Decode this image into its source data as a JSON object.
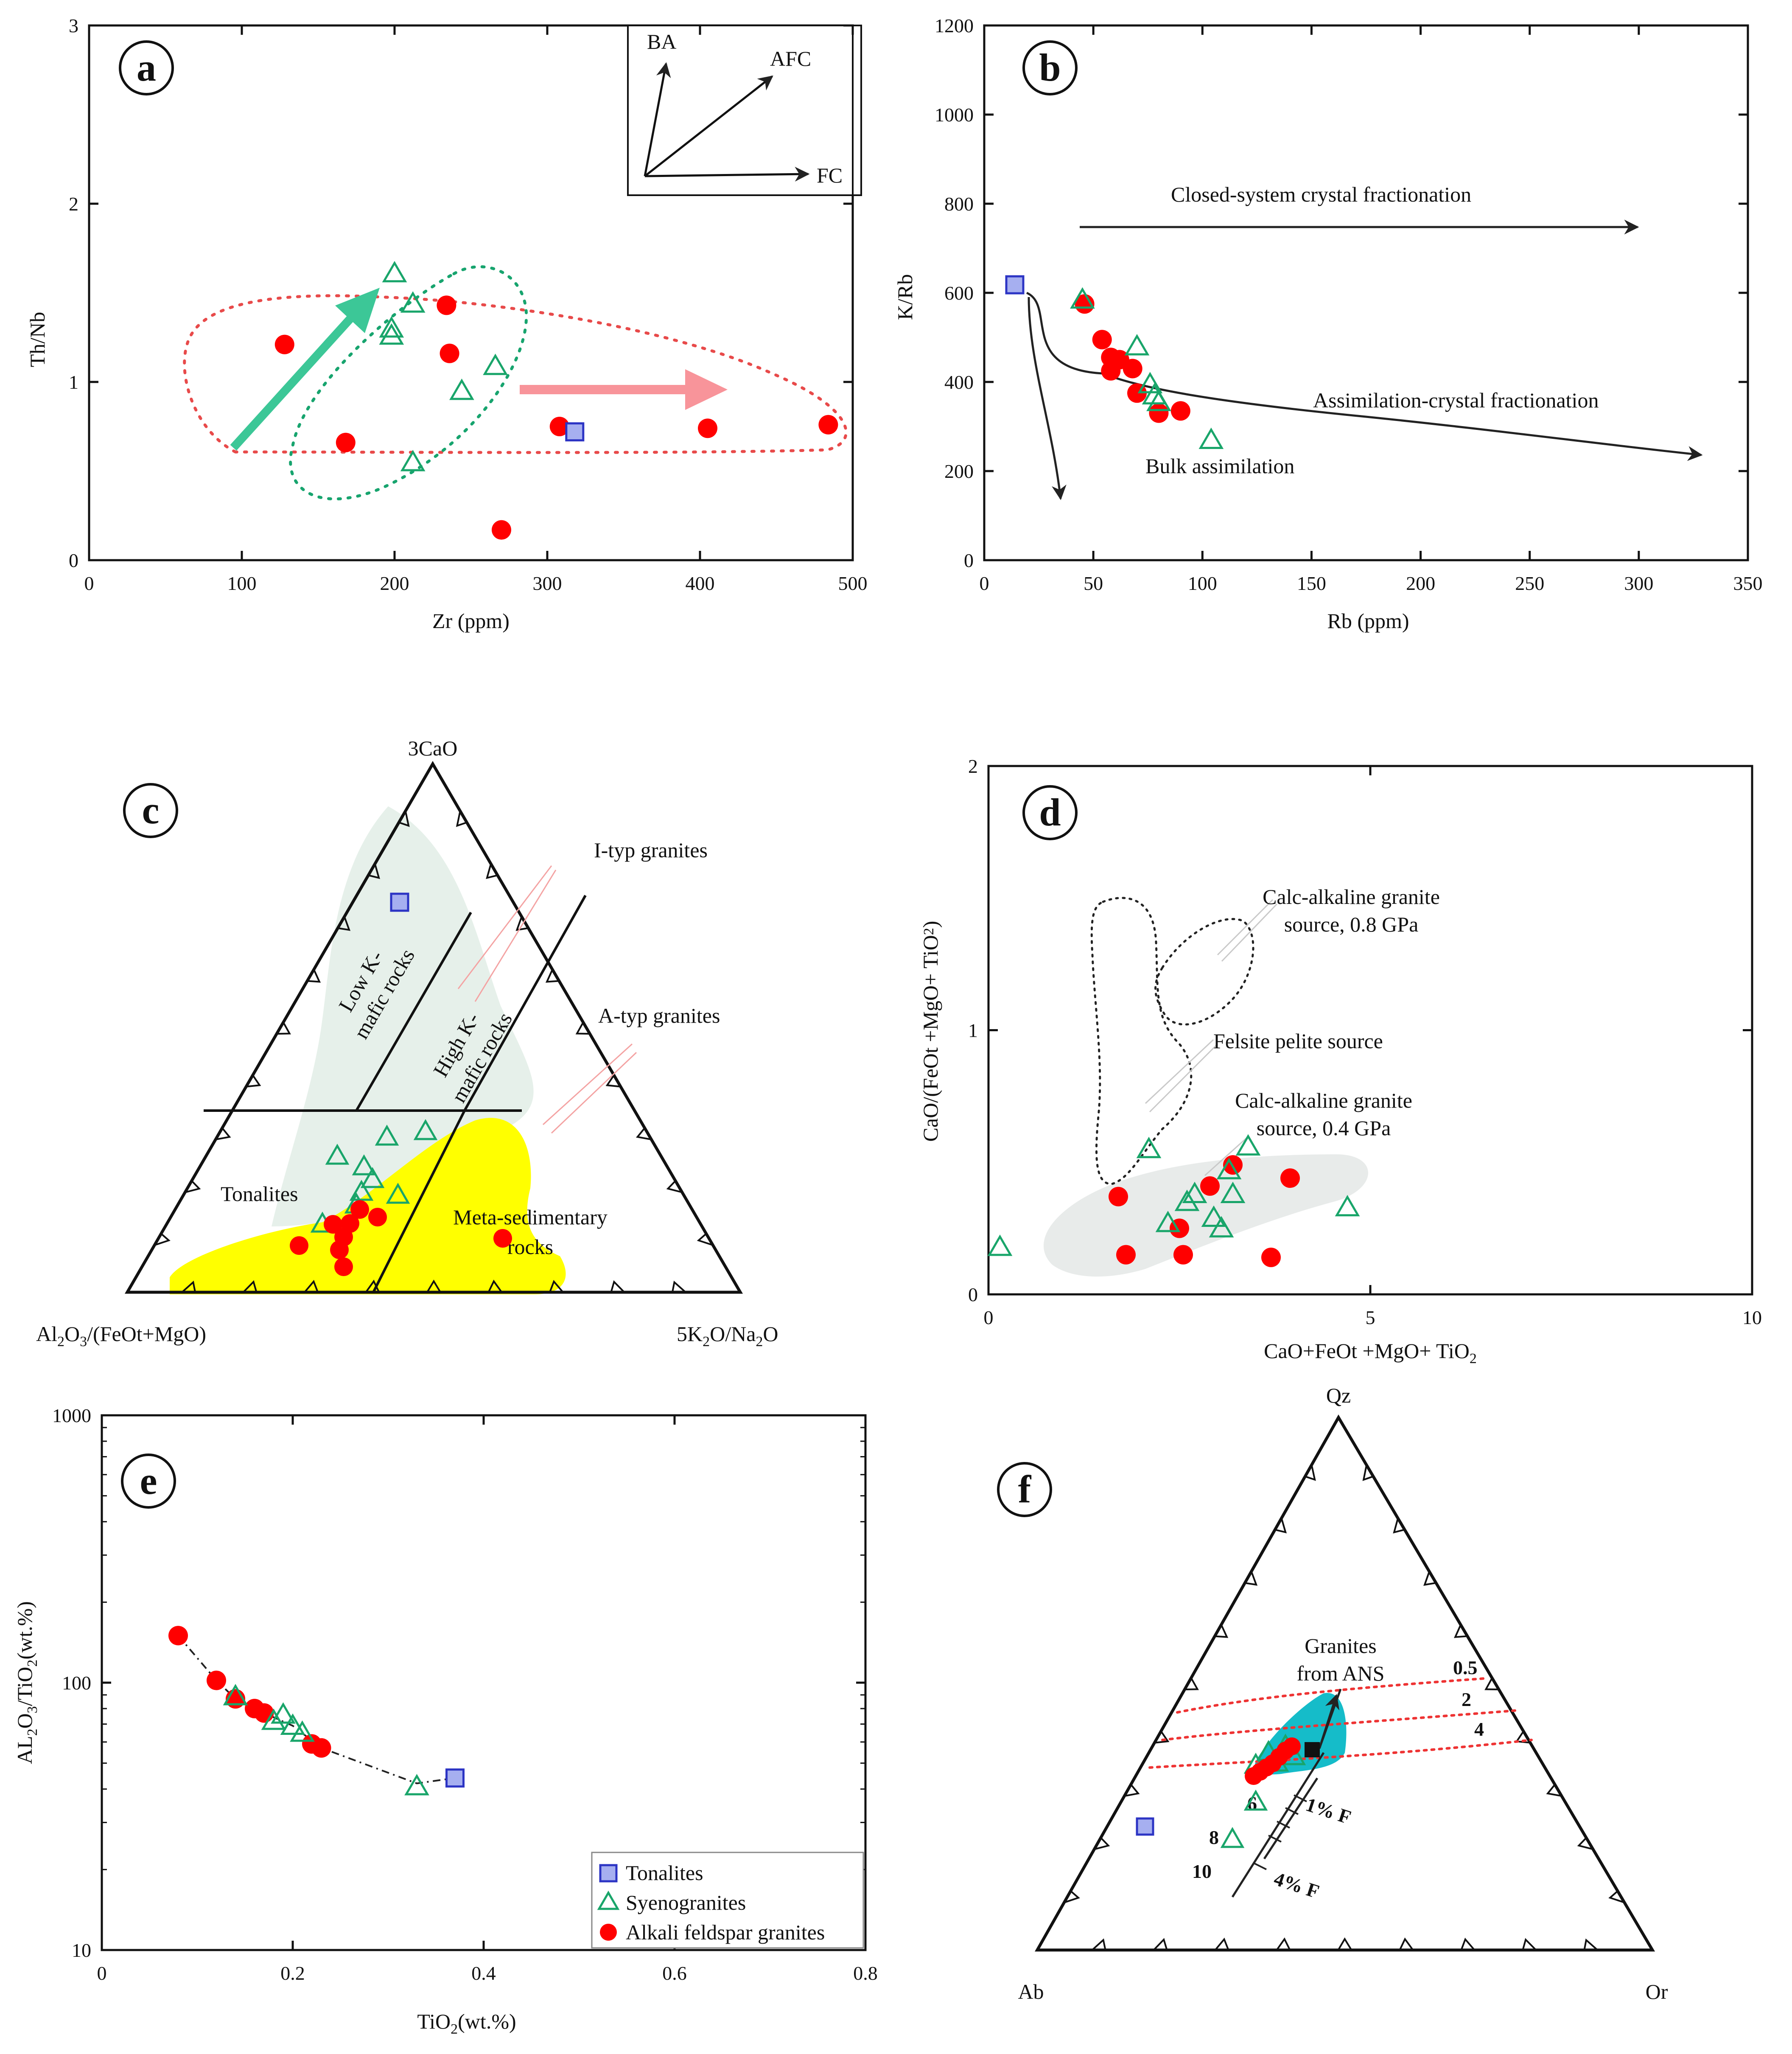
{
  "colors": {
    "alkali": "#ff0000",
    "syeno": "#19a56a",
    "tonalite_fill": "#a6aff0",
    "tonalite_stroke": "#2c34c4",
    "green_field": "#e6f0ea",
    "yellow_field": "#ffff00",
    "gray_field": "#e8ebea",
    "cyan_field": "#15bcc9",
    "red_dotted": "#e84a4a",
    "green_dotted": "#17a46e",
    "pink_arrow": "#f8949a",
    "green_arrow": "#3cc797"
  },
  "chart_data": [
    {
      "id": "a",
      "type": "scatter",
      "panel_label": "a",
      "xlabel": "Zr (ppm)",
      "ylabel": "Th/Nb",
      "xlim": [
        0,
        500
      ],
      "ylim": [
        0,
        3
      ],
      "xticks": [
        "0",
        "100",
        "200",
        "300",
        "400",
        "500"
      ],
      "yticks": [
        "0",
        "1",
        "2",
        "3"
      ],
      "inset_labels": [
        "BA",
        "AFC",
        "FC"
      ],
      "series": [
        {
          "name": "Alkali feldspar granites",
          "points": [
            [
              128,
              1.21
            ],
            [
              168,
              0.66
            ],
            [
              234,
              1.43
            ],
            [
              236,
              1.16
            ],
            [
              270,
              0.17
            ],
            [
              308,
              0.75
            ],
            [
              405,
              0.74
            ],
            [
              484,
              0.76
            ]
          ]
        },
        {
          "name": "Syenogranites",
          "points": [
            [
              200,
              1.61
            ],
            [
              198,
              1.3
            ],
            [
              198,
              1.26
            ],
            [
              212,
              1.44
            ],
            [
              212,
              0.55
            ],
            [
              244,
              0.95
            ],
            [
              266,
              1.09
            ]
          ]
        },
        {
          "name": "Tonalites",
          "points": [
            [
              318,
              0.72
            ]
          ]
        }
      ]
    },
    {
      "id": "b",
      "type": "scatter",
      "panel_label": "b",
      "xlabel": "Rb (ppm)",
      "ylabel": "K/Rb",
      "xlim": [
        0,
        350
      ],
      "ylim": [
        0,
        1200
      ],
      "xticks": [
        "0",
        "50",
        "100",
        "150",
        "200",
        "250",
        "300",
        "350"
      ],
      "yticks": [
        "0",
        "200",
        "400",
        "600",
        "800",
        "1000",
        "1200"
      ],
      "annotations": [
        "Closed-system crystal fractionation",
        "Assimilation-crystal fractionation",
        "Bulk assimilation"
      ],
      "series": [
        {
          "name": "Alkali feldspar granites",
          "points": [
            [
              46,
              575
            ],
            [
              54,
              495
            ],
            [
              58,
              455
            ],
            [
              58,
              425
            ],
            [
              62,
              450
            ],
            [
              68,
              430
            ],
            [
              70,
              375
            ],
            [
              80,
              330
            ],
            [
              90,
              335
            ]
          ]
        },
        {
          "name": "Syenogranites",
          "points": [
            [
              45,
              585
            ],
            [
              70,
              480
            ],
            [
              76,
              395
            ],
            [
              78,
              370
            ],
            [
              80,
              355
            ],
            [
              104,
              270
            ]
          ]
        },
        {
          "name": "Tonalites",
          "points": [
            [
              14,
              618
            ]
          ]
        }
      ]
    },
    {
      "id": "c",
      "type": "ternary",
      "panel_label": "c",
      "apex_top": "3CaO",
      "apex_left": "Al2O3/(FeOt+MgO)",
      "apex_right": "5K2O/Na2O",
      "field_labels": [
        "Low K-",
        "mafic rocks",
        "High K-",
        "mafic rocks",
        "Tonalites",
        "Meta-sedimentary",
        "rocks"
      ],
      "annotations": [
        "I-typ granites",
        "A-typ granites"
      ]
    },
    {
      "id": "d",
      "type": "scatter",
      "panel_label": "d",
      "xlabel": "CaO+FeOt +MgO+ TiO2",
      "ylabel": "CaO/(FeOt +MgO+ TiO2)",
      "xlim": [
        0,
        10
      ],
      "ylim": [
        0,
        2
      ],
      "xticks": [
        "0",
        "5",
        "10"
      ],
      "yticks": [
        "0",
        "1",
        "2"
      ],
      "annotations": [
        "Calc-alkaline granite",
        "source, 0.8 GPa",
        "Felsite pelite source",
        "Calc-alkaline granite",
        "source, 0.4 GPa"
      ],
      "series": [
        {
          "name": "Alkali feldspar granites",
          "points": [
            [
              1.7,
              0.37
            ],
            [
              1.8,
              0.15
            ],
            [
              2.5,
              0.25
            ],
            [
              2.55,
              0.15
            ],
            [
              2.9,
              0.41
            ],
            [
              3.2,
              0.49
            ],
            [
              3.7,
              0.14
            ],
            [
              3.95,
              0.44
            ]
          ]
        },
        {
          "name": "Syenogranites",
          "points": [
            [
              0.15,
              0.18
            ],
            [
              2.1,
              0.55
            ],
            [
              2.35,
              0.27
            ],
            [
              2.6,
              0.35
            ],
            [
              2.7,
              0.38
            ],
            [
              2.95,
              0.29
            ],
            [
              3.05,
              0.25
            ],
            [
              3.15,
              0.47
            ],
            [
              3.2,
              0.38
            ],
            [
              3.4,
              0.56
            ],
            [
              4.7,
              0.33
            ]
          ]
        }
      ]
    },
    {
      "id": "e",
      "type": "scatter",
      "panel_label": "e",
      "xlabel": "TiO2(wt.%)",
      "ylabel": "AL2O3/TiO2(wt.%)",
      "xlim": [
        0,
        0.8
      ],
      "ylim": [
        10,
        1000
      ],
      "yscale": "log",
      "xticks": [
        "0",
        "0.2",
        "0.4",
        "0.6",
        "0.8"
      ],
      "yticks": [
        "10",
        "100",
        "1000"
      ],
      "series": [
        {
          "name": "Alkali feldspar granites",
          "points": [
            [
              0.08,
              150
            ],
            [
              0.12,
              102
            ],
            [
              0.14,
              87
            ],
            [
              0.16,
              80
            ],
            [
              0.17,
              77
            ],
            [
              0.22,
              59
            ],
            [
              0.23,
              57
            ]
          ]
        },
        {
          "name": "Syenogranites",
          "points": [
            [
              0.14,
              89
            ],
            [
              0.18,
              72
            ],
            [
              0.19,
              76
            ],
            [
              0.2,
              69
            ],
            [
              0.21,
              65
            ],
            [
              0.33,
              41
            ]
          ]
        },
        {
          "name": "Tonalites",
          "points": [
            [
              0.37,
              44
            ]
          ]
        }
      ],
      "legend": [
        "Tonalites",
        "Syenogranites",
        "Alkali feldspar granites"
      ]
    },
    {
      "id": "f",
      "type": "ternary",
      "panel_label": "f",
      "apex_top": "Qz",
      "apex_left": "Ab",
      "apex_right": "Or",
      "annotations": [
        "Granites",
        "from ANS",
        "0.5",
        "2",
        "4",
        "6",
        "8",
        "10",
        "1% F",
        "4% F"
      ]
    }
  ]
}
